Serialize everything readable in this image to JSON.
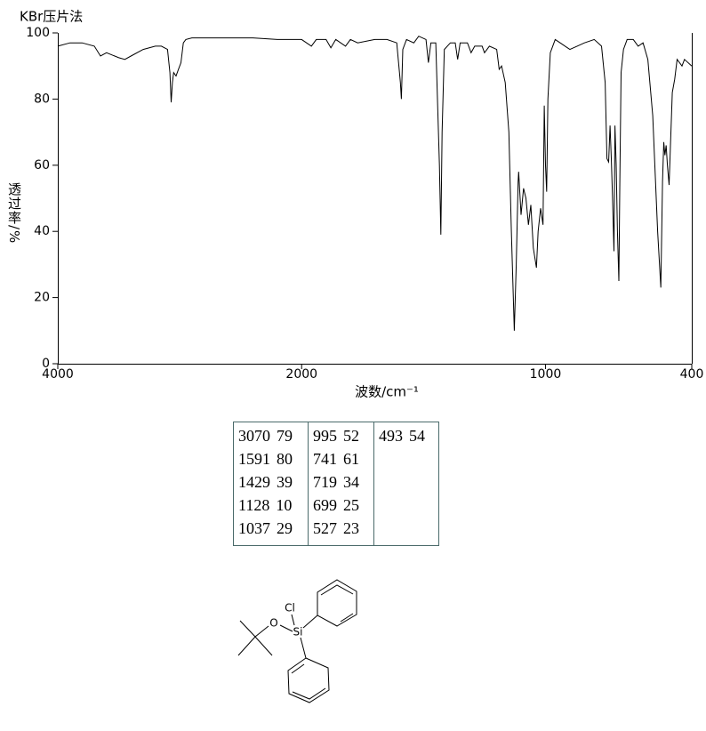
{
  "chart_data": {
    "type": "line",
    "title": "KBr压片法",
    "xlabel": "波数/cm⁻¹",
    "ylabel": "透过率/%",
    "color": "#000000",
    "x": [
      4000,
      3900,
      3800,
      3700,
      3650,
      3600,
      3500,
      3450,
      3400,
      3300,
      3200,
      3150,
      3100,
      3080,
      3070,
      3060,
      3050,
      3030,
      3010,
      2990,
      2970,
      2950,
      2900,
      2800,
      2600,
      2400,
      2200,
      2100,
      2000,
      1960,
      1940,
      1900,
      1880,
      1860,
      1820,
      1800,
      1770,
      1700,
      1650,
      1610,
      1595,
      1591,
      1585,
      1570,
      1540,
      1520,
      1490,
      1480,
      1470,
      1450,
      1435,
      1429,
      1424,
      1415,
      1390,
      1370,
      1360,
      1350,
      1320,
      1305,
      1290,
      1260,
      1250,
      1230,
      1200,
      1190,
      1180,
      1165,
      1150,
      1140,
      1128,
      1120,
      1112,
      1110,
      1100,
      1090,
      1080,
      1070,
      1060,
      1050,
      1037,
      1030,
      1020,
      1010,
      1005,
      1000,
      995,
      990,
      980,
      960,
      900,
      870,
      840,
      800,
      770,
      755,
      748,
      741,
      735,
      730,
      725,
      719,
      715,
      710,
      705,
      699,
      695,
      690,
      680,
      665,
      640,
      620,
      600,
      580,
      560,
      540,
      527,
      520,
      515,
      510,
      505,
      500,
      493,
      488,
      480,
      470,
      460,
      440,
      430,
      400
    ],
    "values": [
      96,
      97,
      97,
      96,
      93,
      94,
      92.5,
      92,
      93,
      95,
      96,
      96,
      95,
      88,
      79,
      85,
      88,
      87,
      89,
      91,
      97,
      98,
      98.5,
      98.5,
      98.5,
      98.5,
      98,
      98,
      98,
      96,
      98,
      98,
      95.5,
      98,
      96,
      98,
      97,
      98,
      98,
      97,
      85,
      80,
      95,
      98,
      97,
      99,
      98,
      91,
      97,
      97,
      60,
      39,
      70,
      95,
      97,
      97,
      92,
      97,
      97,
      94,
      96,
      96,
      94,
      96,
      95,
      89,
      90,
      85,
      70,
      40,
      10,
      30,
      55,
      58,
      45,
      53,
      50,
      42,
      48,
      35,
      29,
      40,
      47,
      42,
      78,
      60,
      52,
      80,
      94,
      98,
      95,
      96,
      97,
      98,
      96,
      85,
      62,
      61,
      72,
      62,
      50,
      34,
      72,
      60,
      40,
      25,
      55,
      88,
      95,
      98,
      98,
      96,
      97,
      92,
      75,
      40,
      23,
      55,
      67,
      63,
      66,
      60,
      54,
      65,
      82,
      86,
      92,
      90,
      92,
      90
    ],
    "xlim": [
      4000,
      400
    ],
    "xticks": [
      4000,
      2000,
      1000,
      400
    ],
    "ylim": [
      0,
      100
    ],
    "yticks": [
      0,
      20,
      40,
      60,
      80,
      100
    ],
    "peaks": {
      "wavenumber": [
        3070,
        1591,
        1429,
        1128,
        1037,
        995,
        741,
        719,
        699,
        527,
        493
      ],
      "transmittance": [
        79,
        80,
        39,
        10,
        29,
        52,
        61,
        34,
        25,
        23,
        54
      ]
    }
  },
  "structure": {
    "atoms": [
      "Cl",
      "O",
      "Si"
    ]
  }
}
